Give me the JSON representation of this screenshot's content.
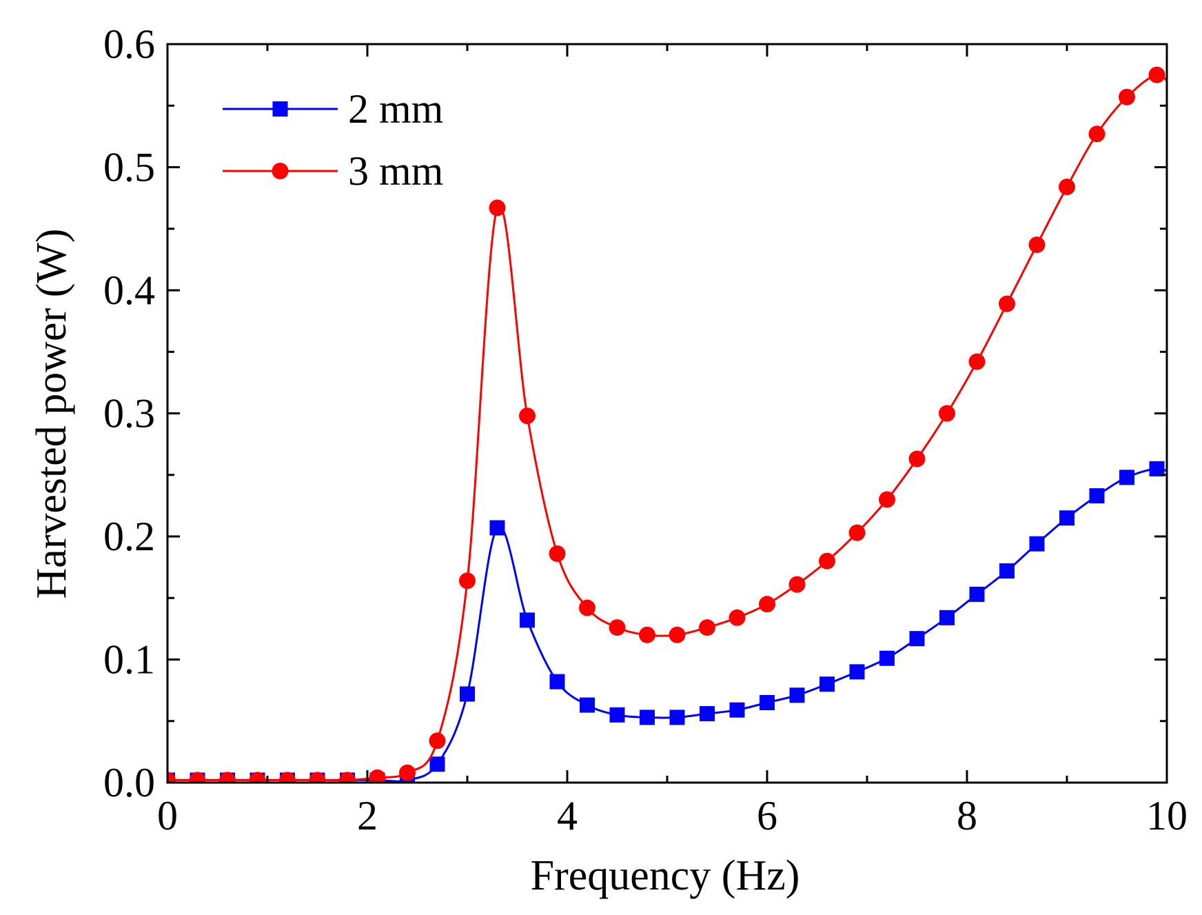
{
  "chart_data": {
    "type": "line",
    "title": "",
    "xlabel": "Frequency (Hz)",
    "ylabel": "Harvested power (W)",
    "xlim": [
      0,
      10
    ],
    "ylim": [
      0,
      0.6
    ],
    "xticks": [
      0,
      2,
      4,
      6,
      8,
      10
    ],
    "xtick_labels": [
      "0",
      "2",
      "4",
      "6",
      "8",
      "10"
    ],
    "yticks": [
      0,
      0.1,
      0.2,
      0.3,
      0.4,
      0.5,
      0.6
    ],
    "ytick_labels": [
      "0.0",
      "0.1",
      "0.2",
      "0.3",
      "0.4",
      "0.5",
      "0.6"
    ],
    "grid": false,
    "legend_position": "top-left",
    "series": [
      {
        "name": "2 mm",
        "color": "#0000ff",
        "marker": "square",
        "x": [
          0,
          0.3,
          0.6,
          0.9,
          1.2,
          1.5,
          1.8,
          2.1,
          2.4,
          2.7,
          3.0,
          3.3,
          3.6,
          3.9,
          4.2,
          4.5,
          4.8,
          5.1,
          5.4,
          5.7,
          6.0,
          6.3,
          6.6,
          6.9,
          7.2,
          7.5,
          7.8,
          8.1,
          8.4,
          8.7,
          9.0,
          9.3,
          9.6,
          9.9
        ],
        "values": [
          0.002,
          0.002,
          0.002,
          0.002,
          0.002,
          0.002,
          0.002,
          0.002,
          0.002,
          0.015,
          0.072,
          0.207,
          0.132,
          0.082,
          0.063,
          0.055,
          0.053,
          0.053,
          0.056,
          0.059,
          0.065,
          0.071,
          0.08,
          0.09,
          0.101,
          0.117,
          0.134,
          0.153,
          0.172,
          0.194,
          0.215,
          0.233,
          0.248,
          0.255
        ]
      },
      {
        "name": "3 mm",
        "color": "#ff0000",
        "marker": "circle",
        "x": [
          0,
          0.3,
          0.6,
          0.9,
          1.2,
          1.5,
          1.8,
          2.1,
          2.4,
          2.7,
          3.0,
          3.3,
          3.6,
          3.9,
          4.2,
          4.5,
          4.8,
          5.1,
          5.4,
          5.7,
          6.0,
          6.3,
          6.6,
          6.9,
          7.2,
          7.5,
          7.8,
          8.1,
          8.4,
          8.7,
          9.0,
          9.3,
          9.6,
          9.9
        ],
        "values": [
          0.002,
          0.002,
          0.002,
          0.002,
          0.002,
          0.002,
          0.002,
          0.004,
          0.008,
          0.034,
          0.164,
          0.467,
          0.298,
          0.186,
          0.142,
          0.126,
          0.12,
          0.12,
          0.126,
          0.134,
          0.145,
          0.161,
          0.18,
          0.203,
          0.23,
          0.263,
          0.3,
          0.342,
          0.389,
          0.437,
          0.484,
          0.527,
          0.557,
          0.575
        ]
      }
    ]
  }
}
